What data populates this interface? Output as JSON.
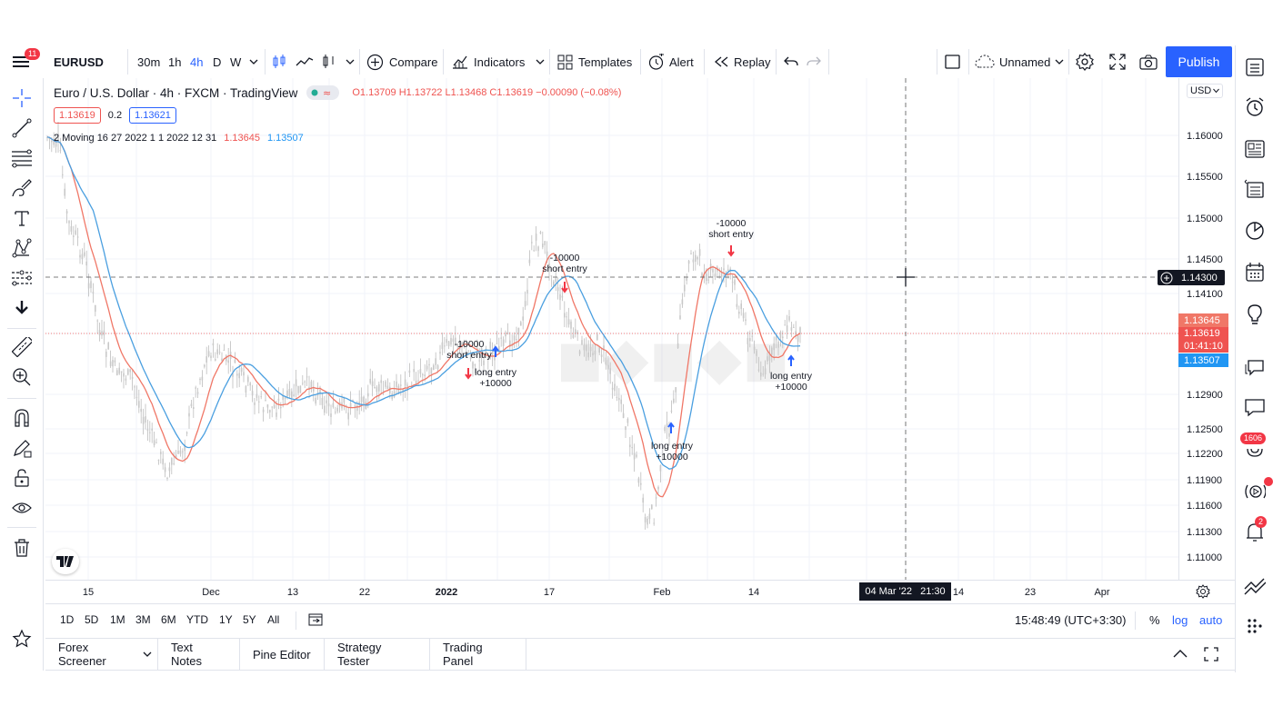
{
  "topbar": {
    "menu_badge": "11",
    "symbol": "EURUSD",
    "intervals": [
      "30m",
      "1h",
      "4h",
      "D",
      "W"
    ],
    "active_interval": "4h",
    "compare_label": "Compare",
    "indicators_label": "Indicators",
    "templates_label": "Templates",
    "alert_label": "Alert",
    "replay_label": "Replay",
    "layout_name": "Unnamed",
    "publish_label": "Publish"
  },
  "legend": {
    "title": "Euro / U.S. Dollar · 4h · FXCM · TradingView",
    "ohlc": "O1.13709  H1.13722  L1.13468  C1.13619  −0.00090 (−0.08%)",
    "sell_price": "1.13619",
    "spread": "0.2",
    "buy_price": "1.13621",
    "indicator_name": "2 Moving 16 27 2022 1 1 2022 12 31",
    "indicator_value_1": "1.13645",
    "indicator_value_2": "1.13507"
  },
  "price_axis": {
    "currency": "USD",
    "ticks": [
      "1.16000",
      "1.15500",
      "1.15000",
      "1.14500",
      "1.14100",
      "1.12900",
      "1.12500",
      "1.12200",
      "1.11900",
      "1.11600",
      "1.11300",
      "1.11000"
    ],
    "crosshair_price": "1.14300",
    "tag_fast": "1.13645",
    "tag_last": "1.13619",
    "tag_countdown": "01:41:10",
    "tag_slow": "1.13507"
  },
  "time_axis": {
    "ticks": [
      "15",
      "Dec",
      "13",
      "22",
      "2022",
      "17",
      "Feb",
      "14",
      "14",
      "23",
      "Apr"
    ],
    "crosshair_label": "04 Mar '22   21:30"
  },
  "annotations": [
    {
      "qty": "-10000",
      "label": "short entry"
    },
    {
      "qty": "-10000",
      "label": "short entry"
    },
    {
      "qty": "-10000",
      "label": "short entry"
    },
    {
      "qty": "+10000",
      "label": "long entry"
    },
    {
      "qty": "+10000",
      "label": "long entry"
    },
    {
      "qty": "+10000",
      "label": "long entry"
    }
  ],
  "range_bar": {
    "ranges": [
      "1D",
      "5D",
      "1M",
      "3M",
      "6M",
      "YTD",
      "1Y",
      "5Y",
      "All"
    ],
    "clock": "15:48:49 (UTC+3:30)",
    "percent_label": "%",
    "log_label": "log",
    "auto_label": "auto"
  },
  "bottom_tabs": [
    "Forex Screener",
    "Text Notes",
    "Pine Editor",
    "Strategy Tester",
    "Trading Panel"
  ],
  "right_badges": {
    "ideas": "1606",
    "alerts": "2"
  },
  "colors": {
    "accent": "#2962ff",
    "up": "#ef5350",
    "fast_ma": "#f07767",
    "slow_ma": "#4a9fe0",
    "candle": "#b9b9b9"
  }
}
